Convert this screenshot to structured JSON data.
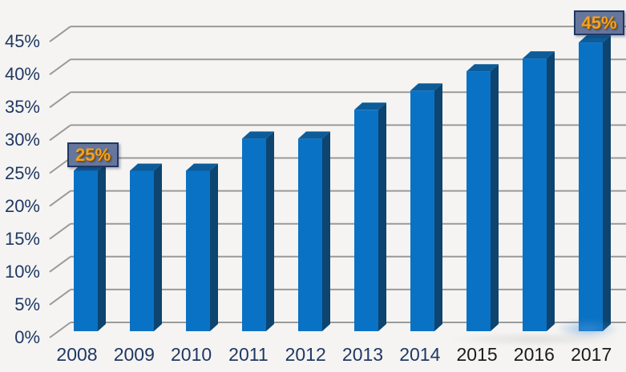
{
  "chart_data": {
    "type": "bar",
    "style": "3d-column",
    "title": "",
    "xlabel": "",
    "ylabel": "",
    "categories": [
      "2008",
      "2009",
      "2010",
      "2011",
      "2012",
      "2013",
      "2014",
      "2015",
      "2016",
      "2017"
    ],
    "values": [
      25,
      25,
      25,
      30,
      30,
      34.5,
      37.5,
      40.5,
      42.5,
      45
    ],
    "unit": "%",
    "ylim": [
      0,
      45
    ],
    "ytick_step": 5,
    "ytick_labels": [
      "0%",
      "5%",
      "10%",
      "15%",
      "20%",
      "25%",
      "30%",
      "35%",
      "40%",
      "45%"
    ],
    "grid": true,
    "legend": null,
    "x_label_alt_indices": [
      7,
      8,
      9
    ],
    "annotations": [
      {
        "category": "2008",
        "label": "25%"
      },
      {
        "category": "2017",
        "label": "45%"
      }
    ]
  },
  "colors": {
    "background": "#f5f4f2",
    "bar_front": "#0a72c5",
    "bar_side": "#0d4470",
    "bar_top": "#0c5c9a",
    "gridline": "#9a9a9a",
    "axis_text": "#1f3864",
    "x_label_alt": "#1b1b1b",
    "callout_bg": "#67769c",
    "callout_border": "#1f3864",
    "callout_text": "#f6a21c",
    "callout_text_shadow": "#7a4d0a"
  }
}
